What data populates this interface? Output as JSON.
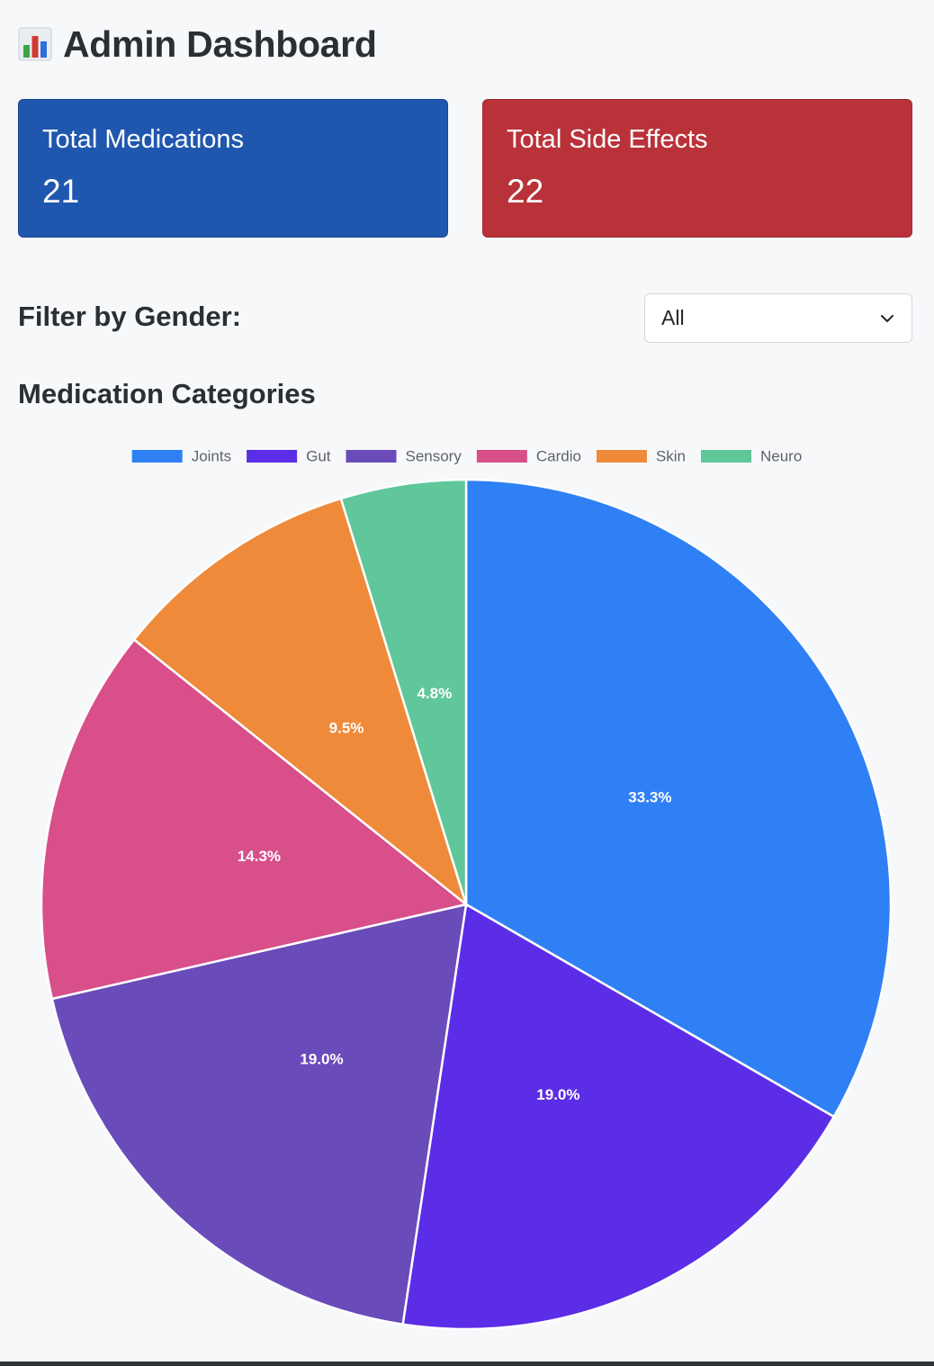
{
  "header": {
    "title": "Admin Dashboard",
    "icon": "bar-chart-icon"
  },
  "stats": {
    "medications": {
      "label": "Total Medications",
      "value": "21",
      "color": "#2057ae"
    },
    "side_effects": {
      "label": "Total Side Effects",
      "value": "22",
      "color": "#b9323a"
    }
  },
  "filter": {
    "label": "Filter by Gender:",
    "selected": "All"
  },
  "section": {
    "title": "Medication Categories"
  },
  "chart_data": {
    "type": "pie",
    "title": "",
    "legend_position": "top",
    "categories": [
      "Joints",
      "Gut",
      "Sensory",
      "Cardio",
      "Skin",
      "Neuro"
    ],
    "values": [
      7,
      4,
      4,
      3,
      2,
      1
    ],
    "labels": [
      "33.3%",
      "19.0%",
      "19.0%",
      "14.3%",
      "9.5%",
      "4.8%"
    ],
    "colors": [
      "#2f80f5",
      "#5c2de6",
      "#6a4bba",
      "#d84f8a",
      "#ee8a3a",
      "#5fc79a"
    ]
  }
}
